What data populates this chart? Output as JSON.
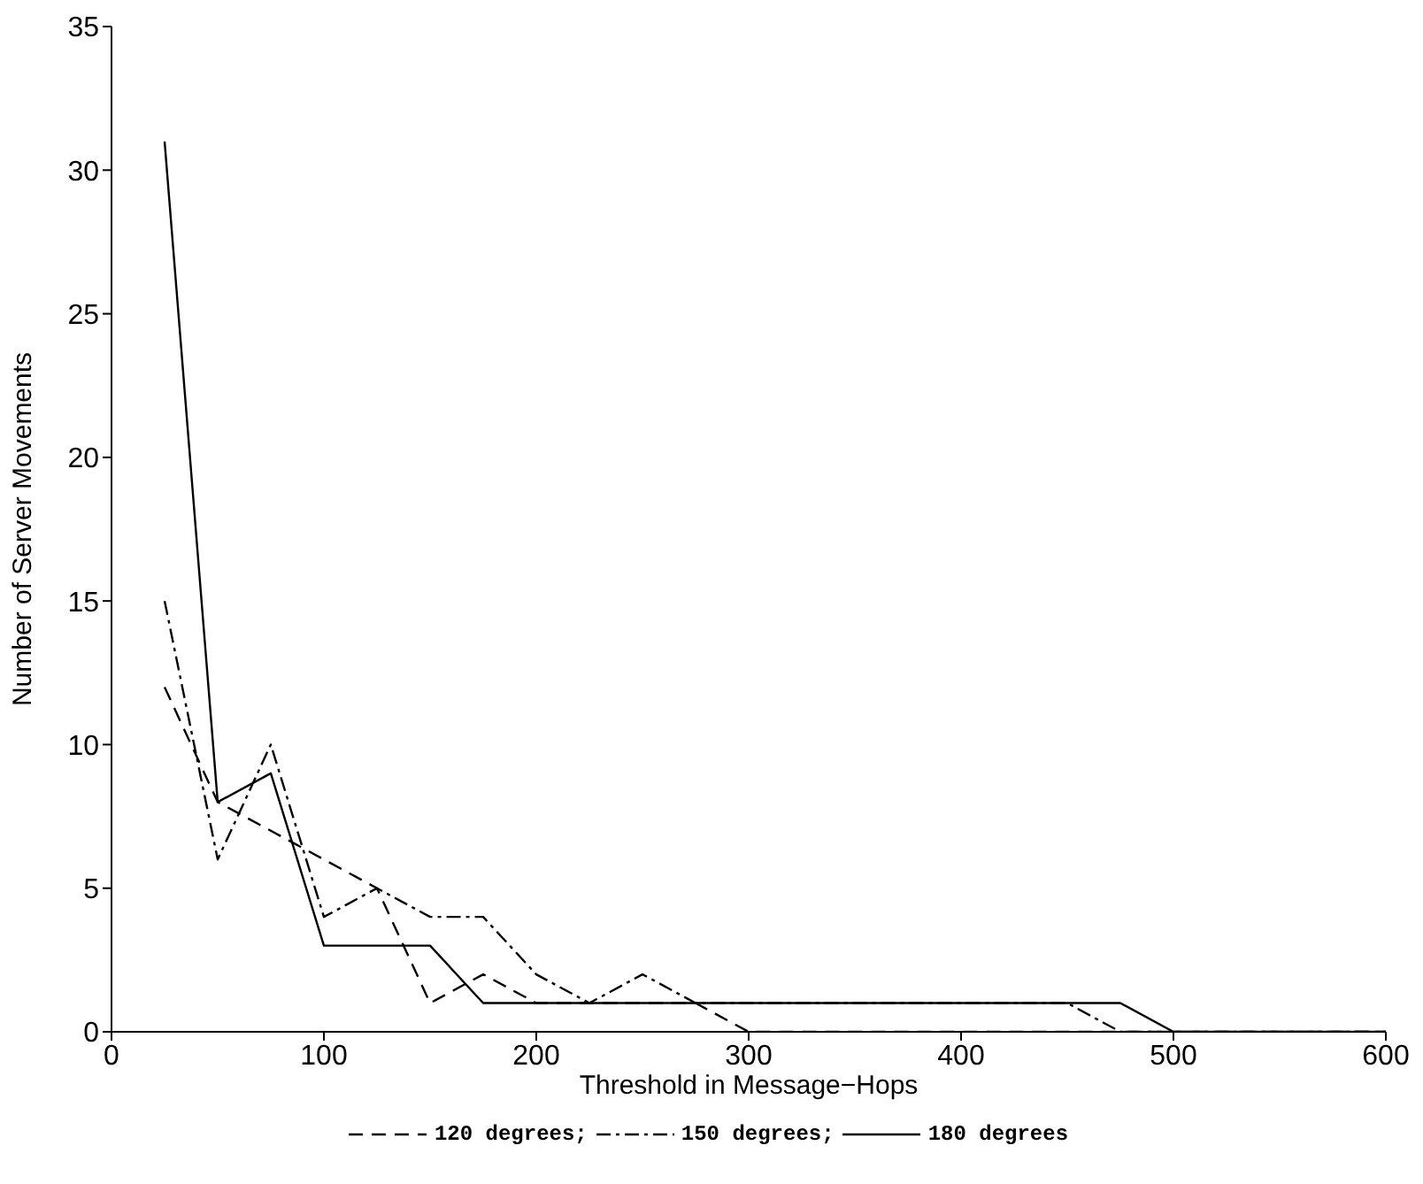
{
  "chart_data": {
    "type": "line",
    "xlabel": "Threshold in Message−Hops",
    "ylabel": "Number of Server Movements",
    "x": [
      25,
      50,
      75,
      100,
      125,
      150,
      175,
      200,
      225,
      250,
      275,
      300,
      325,
      350,
      375,
      400,
      425,
      450,
      475,
      500,
      525,
      550,
      575,
      600
    ],
    "series": [
      {
        "name": "120 degrees;",
        "color": "#000000",
        "line_style": "dashed",
        "values": [
          12,
          8,
          7,
          6,
          5,
          1,
          2,
          1,
          1,
          1,
          1,
          0,
          0,
          0,
          0,
          0,
          0,
          0,
          0,
          0,
          0,
          0,
          0,
          0
        ]
      },
      {
        "name": "150 degrees;",
        "color": "#000000",
        "line_style": "dashdot",
        "values": [
          15,
          6,
          10,
          4,
          5,
          4,
          4,
          2,
          1,
          2,
          1,
          1,
          1,
          1,
          1,
          1,
          1,
          1,
          0,
          0,
          0,
          0,
          0,
          0
        ]
      },
      {
        "name": "180 degrees",
        "color": "#000000",
        "line_style": "solid",
        "values": [
          31,
          8,
          9,
          3,
          3,
          3,
          1,
          1,
          1,
          1,
          1,
          1,
          1,
          1,
          1,
          1,
          1,
          1,
          1,
          0,
          0,
          0,
          0,
          0
        ]
      }
    ],
    "xlim": [
      0,
      600
    ],
    "xticks": [
      0,
      100,
      200,
      300,
      400,
      500,
      600
    ],
    "ylim": [
      0,
      35
    ],
    "yticks": [
      0,
      5,
      10,
      15,
      20,
      25,
      30,
      35
    ],
    "grid": false,
    "legend": "bottom",
    "marker": "none"
  }
}
